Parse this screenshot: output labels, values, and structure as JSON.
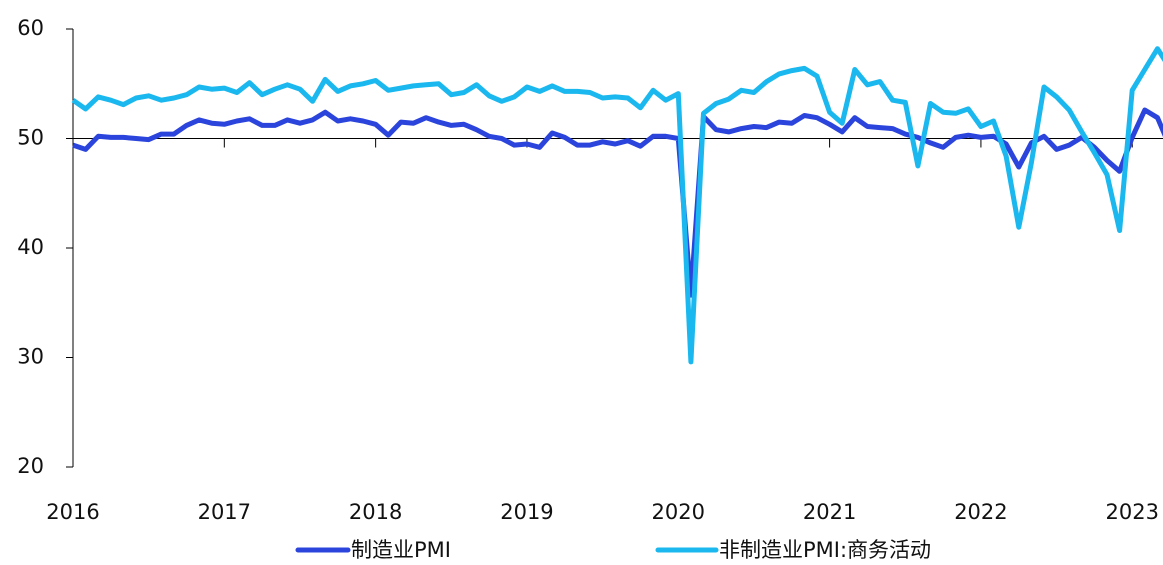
{
  "chart_data": {
    "type": "line",
    "categories": [
      "2016",
      null,
      null,
      null,
      null,
      null,
      null,
      null,
      null,
      null,
      null,
      null,
      "2017",
      null,
      null,
      null,
      null,
      null,
      null,
      null,
      null,
      null,
      null,
      null,
      "2018",
      null,
      null,
      null,
      null,
      null,
      null,
      null,
      null,
      null,
      null,
      null,
      "2019",
      null,
      null,
      null,
      null,
      null,
      null,
      null,
      null,
      null,
      null,
      null,
      "2020",
      null,
      null,
      null,
      null,
      null,
      null,
      null,
      null,
      null,
      null,
      null,
      "2021",
      null,
      null,
      null,
      null,
      null,
      null,
      null,
      null,
      null,
      null,
      null,
      "2022",
      null,
      null,
      null,
      null,
      null,
      null,
      null,
      null,
      null,
      null,
      null,
      "2023",
      null,
      null,
      null
    ],
    "series": [
      {
        "name": "制造业PMI",
        "color": "#2b44dc",
        "values": [
          49.4,
          49.0,
          50.2,
          50.1,
          50.1,
          50.0,
          49.9,
          50.4,
          50.4,
          51.2,
          51.7,
          51.4,
          51.3,
          51.6,
          51.8,
          51.2,
          51.2,
          51.7,
          51.4,
          51.7,
          52.4,
          51.6,
          51.8,
          51.6,
          51.3,
          50.3,
          51.5,
          51.4,
          51.9,
          51.5,
          51.2,
          51.3,
          50.8,
          50.2,
          50.0,
          49.4,
          49.5,
          49.2,
          50.5,
          50.1,
          49.4,
          49.4,
          49.7,
          49.5,
          49.8,
          49.3,
          50.2,
          50.2,
          50.0,
          35.7,
          52.0,
          50.8,
          50.6,
          50.9,
          51.1,
          51.0,
          51.5,
          51.4,
          52.1,
          51.9,
          51.3,
          50.6,
          51.9,
          51.1,
          51.0,
          50.9,
          50.4,
          50.1,
          49.6,
          49.2,
          50.1,
          50.3,
          50.1,
          50.2,
          49.5,
          47.4,
          49.6,
          50.2,
          49.0,
          49.4,
          50.1,
          49.2,
          48.0,
          47.0,
          50.1,
          52.6,
          51.9,
          49.2
        ]
      },
      {
        "name": "非制造业PMI:商务活动",
        "color": "#1ab8ee",
        "values": [
          53.5,
          52.7,
          53.8,
          53.5,
          53.1,
          53.7,
          53.9,
          53.5,
          53.7,
          54.0,
          54.7,
          54.5,
          54.6,
          54.2,
          55.1,
          54.0,
          54.5,
          54.9,
          54.5,
          53.4,
          55.4,
          54.3,
          54.8,
          55.0,
          55.3,
          54.4,
          54.6,
          54.8,
          54.9,
          55.0,
          54.0,
          54.2,
          54.9,
          53.9,
          53.4,
          53.8,
          54.7,
          54.3,
          54.8,
          54.3,
          54.3,
          54.2,
          53.7,
          53.8,
          53.7,
          52.8,
          54.4,
          53.5,
          54.1,
          29.6,
          52.3,
          53.2,
          53.6,
          54.4,
          54.2,
          55.2,
          55.9,
          56.2,
          56.4,
          55.7,
          52.4,
          51.4,
          56.3,
          54.9,
          55.2,
          53.5,
          53.3,
          47.5,
          53.2,
          52.4,
          52.3,
          52.7,
          51.1,
          51.6,
          48.4,
          41.9,
          47.8,
          54.7,
          53.8,
          52.6,
          50.6,
          48.7,
          46.7,
          41.6,
          54.4,
          56.3,
          58.2,
          56.4
        ]
      }
    ],
    "ylim": [
      20,
      60
    ],
    "yticks": [
      20,
      30,
      40,
      50,
      60
    ],
    "xaxis_at": 50,
    "legend": "bottom"
  }
}
